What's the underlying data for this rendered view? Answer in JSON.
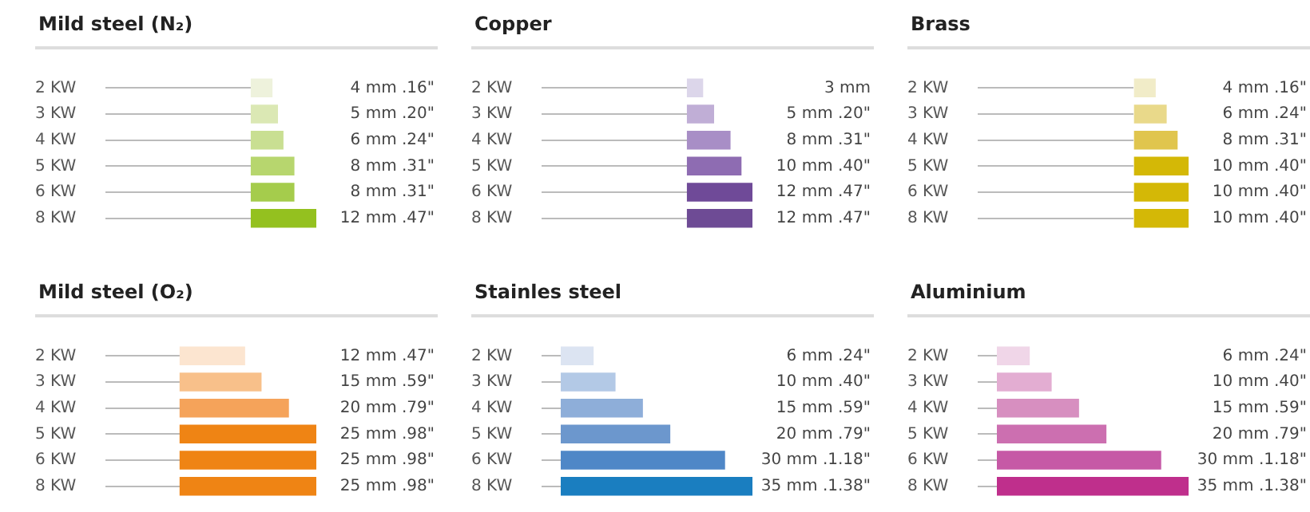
{
  "chart_data": [
    {
      "type": "bar",
      "orientation": "horizontal",
      "title": "Mild steel (N₂)",
      "categories": [
        "2 KW",
        "3 KW",
        "4 KW",
        "5 KW",
        "6 KW",
        "8 KW"
      ],
      "values": [
        4,
        5,
        6,
        8,
        8,
        12
      ],
      "value_labels": [
        "4 mm .16\"",
        "5 mm .20\"",
        "6 mm .24\"",
        "8 mm .31\"",
        "8 mm .31\"",
        "12 mm .47\""
      ],
      "colors": [
        "#eef2dc",
        "#dbe8b4",
        "#c9df92",
        "#b7d66e",
        "#a5cc4c",
        "#94c11f"
      ]
    },
    {
      "type": "bar",
      "orientation": "horizontal",
      "title": "Copper",
      "categories": [
        "2 KW",
        "3 KW",
        "4 KW",
        "5 KW",
        "6 KW",
        "8 KW"
      ],
      "values": [
        3,
        5,
        8,
        10,
        12,
        12
      ],
      "value_labels": [
        "3 mm",
        "5 mm .20\"",
        "8 mm .31\"",
        "10 mm .40\"",
        "12 mm .47\"",
        "12 mm .47\""
      ],
      "colors": [
        "#dcd6ea",
        "#c0aed6",
        "#a88ec6",
        "#8e6cb2",
        "#6f4a98",
        "#6e4b95"
      ]
    },
    {
      "type": "bar",
      "orientation": "horizontal",
      "title": "Brass",
      "categories": [
        "2 KW",
        "3 KW",
        "4 KW",
        "5 KW",
        "6 KW",
        "8 KW"
      ],
      "values": [
        4,
        6,
        8,
        10,
        10,
        10
      ],
      "value_labels": [
        "4 mm .16\"",
        "6 mm .24\"",
        "8 mm .31\"",
        "10 mm .40\"",
        "10 mm .40\"",
        "10 mm .40\""
      ],
      "colors": [
        "#f1ecc8",
        "#e9d98a",
        "#e0c54e",
        "#d4b806",
        "#d4b806",
        "#d4b806"
      ]
    },
    {
      "type": "bar",
      "orientation": "horizontal",
      "title": "Mild steel (O₂)",
      "categories": [
        "2 KW",
        "3 KW",
        "4 KW",
        "5 KW",
        "6 KW",
        "8 KW"
      ],
      "values": [
        12,
        15,
        20,
        25,
        25,
        25
      ],
      "value_labels": [
        "12 mm .47\"",
        "15 mm .59\"",
        "20 mm .79\"",
        "25 mm .98\"",
        "25 mm .98\"",
        "25 mm .98\""
      ],
      "colors": [
        "#fce5d0",
        "#f8c08a",
        "#f5a35a",
        "#ef8414",
        "#ef8414",
        "#ef8414"
      ]
    },
    {
      "type": "bar",
      "orientation": "horizontal",
      "title": "Stainles steel",
      "categories": [
        "2 KW",
        "3 KW",
        "4 KW",
        "5 KW",
        "6 KW",
        "8 KW"
      ],
      "values": [
        6,
        10,
        15,
        20,
        30,
        35
      ],
      "value_labels": [
        "6 mm .24\"",
        "10 mm .40\"",
        "15 mm .59\"",
        "20 mm .79\"",
        "30 mm .1.18\"",
        "35 mm .1.38\""
      ],
      "colors": [
        "#dce4f2",
        "#b3c9e6",
        "#8eaed9",
        "#6c97cd",
        "#4f87c7",
        "#1a7ec0"
      ]
    },
    {
      "type": "bar",
      "orientation": "horizontal",
      "title": "Aluminium",
      "categories": [
        "2 KW",
        "3 KW",
        "4 KW",
        "5 KW",
        "6 KW",
        "8 KW"
      ],
      "values": [
        6,
        10,
        15,
        20,
        30,
        35
      ],
      "value_labels": [
        "6 mm .24\"",
        "10 mm .40\"",
        "15 mm .59\"",
        "20 mm .79\"",
        "30 mm .1.18\"",
        "35 mm .1.38\""
      ],
      "colors": [
        "#f0d6e8",
        "#e3add2",
        "#d78fc0",
        "#cc6fb0",
        "#c659a6",
        "#bf2f8c"
      ]
    }
  ]
}
